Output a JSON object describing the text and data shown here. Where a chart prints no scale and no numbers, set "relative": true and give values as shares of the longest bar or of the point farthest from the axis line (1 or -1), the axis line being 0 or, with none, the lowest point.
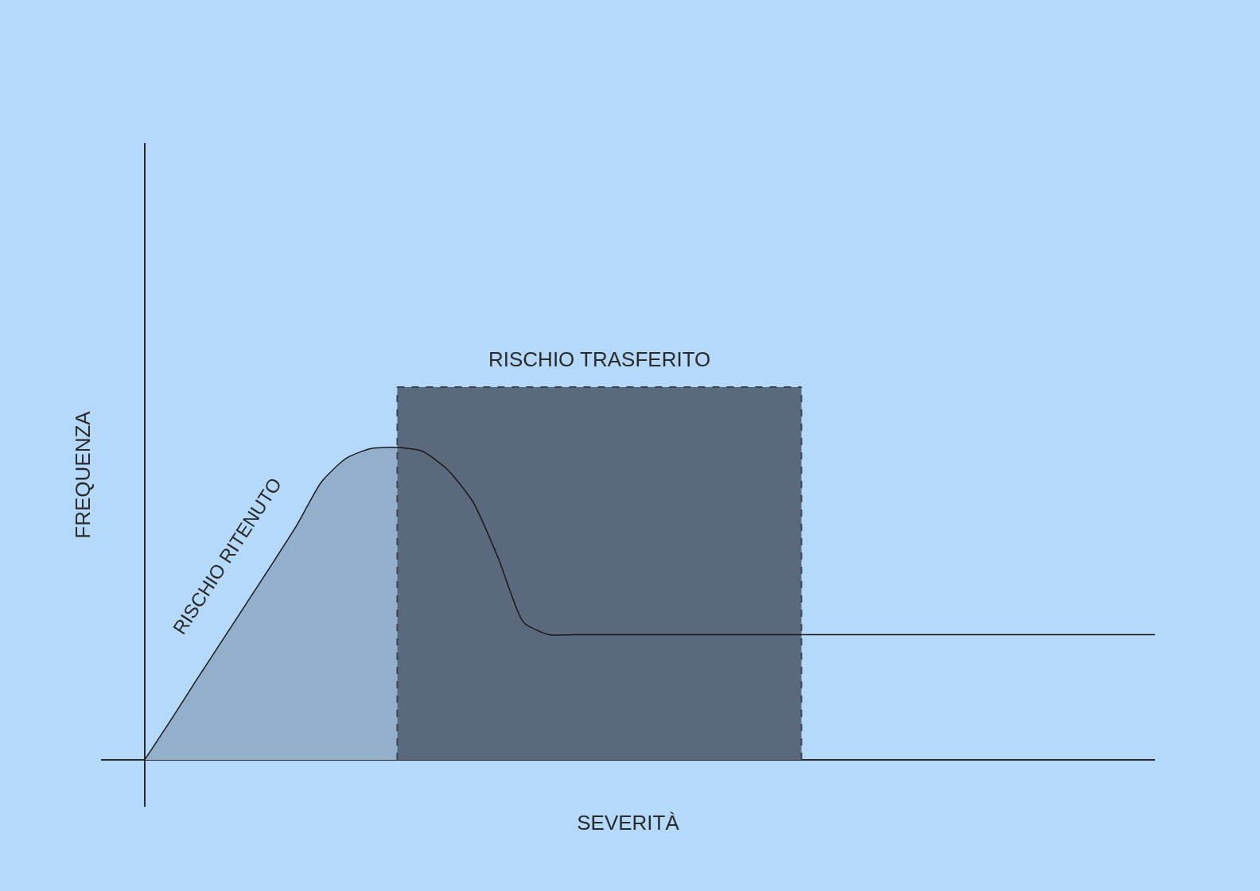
{
  "chart_data": {
    "type": "line",
    "relative": true,
    "xlabel": "SEVERITÀ",
    "ylabel": "FREQUENZA",
    "categories": [
      null,
      null,
      null,
      null,
      null,
      null,
      null,
      null,
      null,
      null,
      null,
      null,
      null,
      null,
      null,
      null,
      null,
      null,
      null,
      null,
      null,
      null,
      null,
      null,
      null,
      null,
      null,
      null,
      null,
      null,
      null,
      null,
      null,
      null,
      null,
      null,
      null,
      null,
      null,
      null,
      null
    ],
    "series": [
      {
        "type": "area",
        "color": "#92b0cc",
        "values": [
          0,
          0.103,
          0.209,
          0.313,
          0.417,
          0.521,
          0.627,
          0.746,
          0.81,
          0.836,
          0.838,
          null,
          null,
          null,
          null,
          null,
          null,
          null,
          null,
          null,
          null,
          null,
          null,
          null,
          null,
          null,
          null,
          null,
          null,
          null,
          null,
          null,
          null,
          null,
          null,
          null,
          null,
          null,
          null,
          null,
          null
        ]
      },
      {
        "type": "area",
        "color": "#5a6a7c",
        "line_style": "dashed",
        "values": [
          null,
          null,
          null,
          null,
          null,
          null,
          null,
          null,
          null,
          null,
          1,
          1,
          1,
          1,
          1,
          1,
          1,
          1,
          1,
          1,
          1,
          1,
          1,
          1,
          1,
          1,
          1,
          null,
          null,
          null,
          null,
          null,
          null,
          null,
          null,
          null,
          null,
          null,
          null,
          null,
          null
        ]
      },
      {
        "color": "#1a1a1a",
        "values": [
          0,
          0.103,
          0.209,
          0.313,
          0.417,
          0.521,
          0.627,
          0.746,
          0.81,
          0.836,
          0.838,
          0.828,
          0.778,
          0.692,
          0.541,
          0.369,
          0.336,
          0.336,
          0.336,
          0.336,
          0.336,
          0.336,
          0.336,
          0.336,
          0.336,
          0.336,
          0.336,
          0.336,
          0.336,
          0.336,
          0.336,
          0.336,
          0.336,
          0.336,
          0.336,
          0.336,
          0.336,
          0.336,
          0.336,
          0.336,
          0.336
        ]
      }
    ],
    "annotations": [
      "RISCHIO RITENUTO",
      "RISCHIO TRASFERITO"
    ],
    "grid": false
  }
}
